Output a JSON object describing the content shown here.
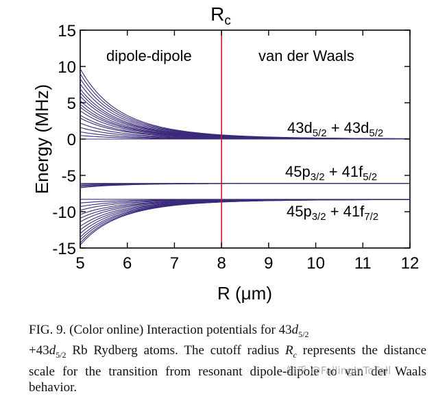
{
  "figure": {
    "rc_label": "R",
    "rc_sub": "c",
    "region_left": "dipole-dipole",
    "region_right": "van der Waals",
    "state_top": {
      "main": "43d",
      "sub": "5/2",
      "plus": " + ",
      "main2": "43d",
      "sub2": "5/2"
    },
    "state_mid": {
      "main": "45p",
      "sub": "3/2",
      "plus": " + ",
      "main2": "41f",
      "sub2": "5/2"
    },
    "state_bot": {
      "main": "45p",
      "sub": "3/2",
      "plus": " + ",
      "main2": "41f",
      "sub2": "7/2"
    }
  },
  "chart_data": {
    "type": "line",
    "xlabel": "R (μm)",
    "ylabel": "Energy (MHz)",
    "xlim": [
      5,
      12
    ],
    "ylim": [
      -15,
      15
    ],
    "xticks": [
      5,
      6,
      7,
      8,
      9,
      10,
      11,
      12
    ],
    "yticks": [
      15,
      10,
      5,
      0,
      -5,
      -10,
      -15
    ],
    "grid": false,
    "vertical_line": {
      "x": 8,
      "label": "Rc",
      "color": "#cc1133"
    },
    "line_color": "#3a2a7a",
    "bands": [
      {
        "name": "43d5/2 + 43d5/2",
        "asymptote": 0,
        "initial_offsets_at_5": [
          9.7,
          9.0,
          8.3,
          7.6,
          6.9,
          6.4,
          5.9,
          5.3,
          4.8,
          4.4,
          3.9,
          3.3,
          2.9,
          2.2,
          1.6,
          1.0,
          0.5,
          0.0
        ]
      },
      {
        "name": "45p3/2 + 41f5/2",
        "asymptote": -6.1,
        "initial_offsets_at_5": [
          0.0,
          -0.15,
          -0.3,
          -0.45,
          -0.6
        ]
      },
      {
        "name": "45p3/2 + 41f7/2",
        "asymptote": -8.3,
        "initial_offsets_at_5": [
          0.0,
          -0.5,
          -1.0,
          -1.5,
          -2.1,
          -2.6,
          -3.1,
          -3.7,
          -4.2,
          -4.7,
          -5.2,
          -5.6,
          -6.0,
          -6.3
        ]
      }
    ]
  },
  "caption": {
    "fig_label": "FIG. 9.",
    "t1": " (Color online) Interaction potentials for 43",
    "d1": "d",
    "s1": "5/2",
    "t2": "+43",
    "d2": "d",
    "s2": "5/2",
    "t3": " Rb Rydberg atoms. The cutoff radius ",
    "r": "R",
    "rs": "c",
    "t4": " represents the distance scale for the transition from resonant dipole-dipole to van der Waals behavior."
  },
  "watermark": "知乎 @FallingInToFall"
}
